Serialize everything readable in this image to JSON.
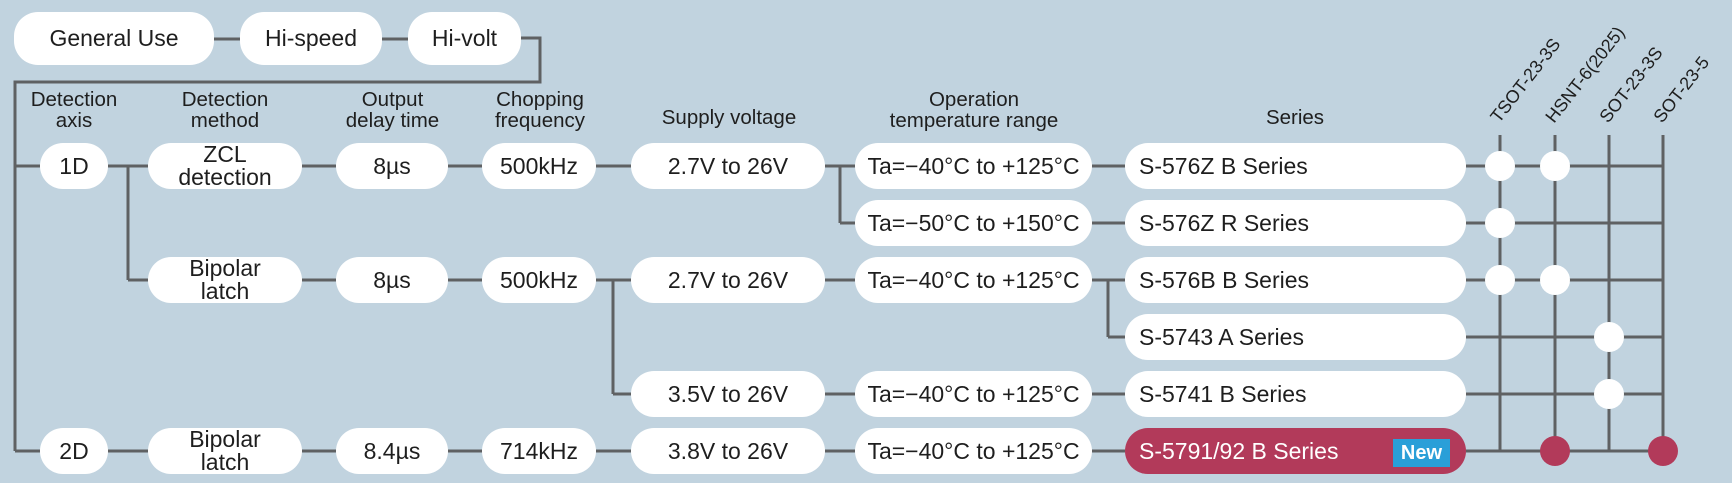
{
  "top_tabs": [
    "General Use",
    "Hi-speed",
    "Hi-volt"
  ],
  "headers": {
    "axis": "Detection\naxis",
    "method": "Detection\nmethod",
    "delay": "Output\ndelay time",
    "chopping": "Chopping\nfrequency",
    "supply": "Supply voltage",
    "temp": "Operation\ntemperature range",
    "series": "Series"
  },
  "packages": [
    "TSOT-23-3S",
    "HSNT-6(2025)",
    "SOT-23-3S",
    "SOT-23-5"
  ],
  "axis": {
    "d1": "1D",
    "d2": "2D"
  },
  "methods": {
    "zcl": "ZCL\ndetection",
    "bipolar1": "Bipolar\nlatch",
    "bipolar2": "Bipolar\nlatch"
  },
  "delays": {
    "zcl": "8µs",
    "bipolar1": "8µs",
    "bipolar2": "8.4µs"
  },
  "chopping": {
    "zcl": "500kHz",
    "bipolar1": "500kHz",
    "bipolar2": "714kHz"
  },
  "supply": {
    "s1": "2.7V to 26V",
    "s2": "2.7V to 26V",
    "s3": "3.5V to 26V",
    "s4": "3.8V to 26V"
  },
  "temps": {
    "t1": "Ta=−40°C to +125°C",
    "t2": "Ta=−50°C to +150°C",
    "t3": "Ta=−40°C to +125°C",
    "t4": "Ta=−40°C to +125°C",
    "t5": "Ta=−40°C to +125°C"
  },
  "series": [
    {
      "name": "S-576Z B Series",
      "packages": [
        "TSOT-23-3S",
        "HSNT-6(2025)"
      ],
      "new": false
    },
    {
      "name": "S-576Z R Series",
      "packages": [
        "TSOT-23-3S"
      ],
      "new": false
    },
    {
      "name": "S-576B B Series",
      "packages": [
        "TSOT-23-3S",
        "HSNT-6(2025)"
      ],
      "new": false
    },
    {
      "name": "S-5743 A Series",
      "packages": [
        "SOT-23-3S"
      ],
      "new": false
    },
    {
      "name": "S-5741 B Series",
      "packages": [
        "SOT-23-3S"
      ],
      "new": false
    },
    {
      "name": "S-5791/92 B Series",
      "packages": [
        "HSNT-6(2025)",
        "SOT-23-5"
      ],
      "new": true,
      "badge": "New"
    }
  ],
  "colors": {
    "background": "#c1d3df",
    "line": "#5f6163",
    "new_series": "#b23a5a",
    "new_badge": "#2a9fd8"
  }
}
